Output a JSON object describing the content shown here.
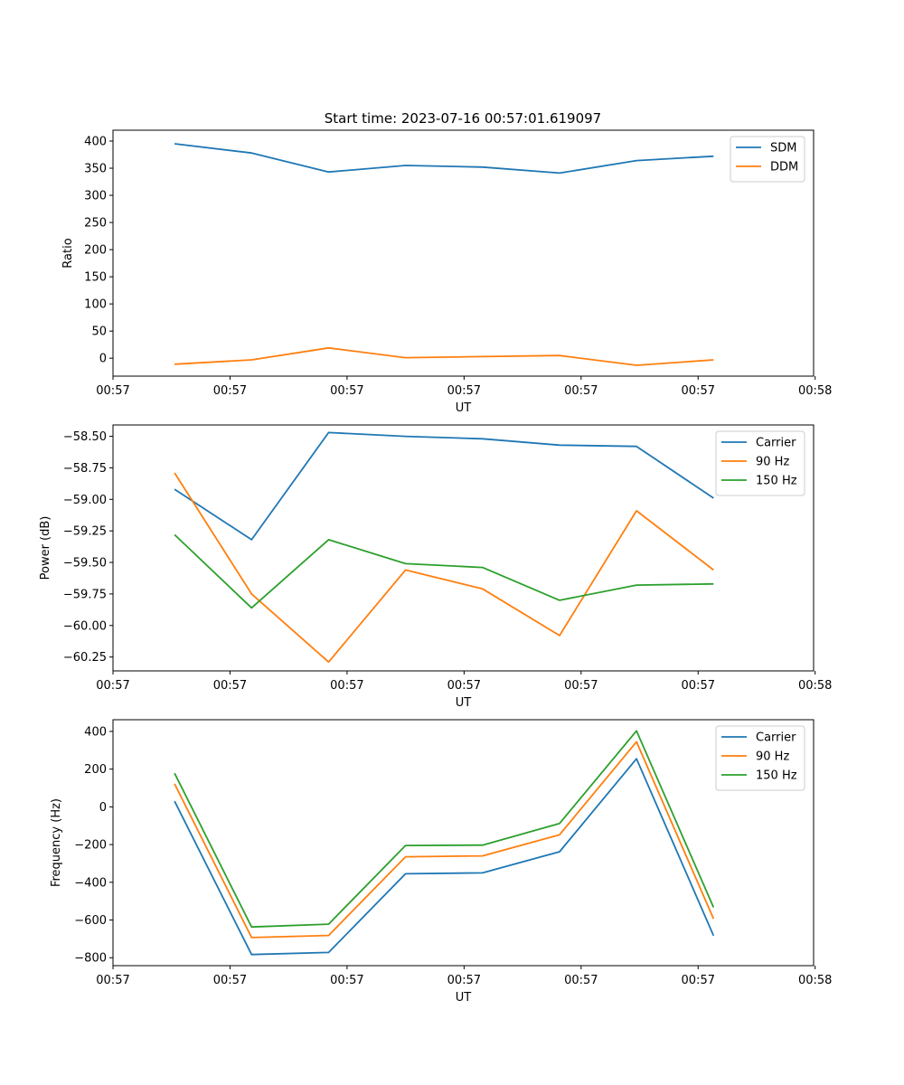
{
  "figure": {
    "title": "Start time: 2023-07-16 00:57:01.619097"
  },
  "chart_data": [
    {
      "type": "line",
      "title": "Start time: 2023-07-16 00:57:01.619097",
      "xlabel": "UT",
      "ylabel": "Ratio",
      "x": [
        1,
        2,
        3,
        4,
        5,
        6,
        7,
        8
      ],
      "xlim": [
        0.2,
        9.3
      ],
      "xticks": [
        0.2,
        1.72,
        3.24,
        4.76,
        6.28,
        7.8,
        9.32
      ],
      "xtick_labels": [
        "00:57",
        "00:57",
        "00:57",
        "00:57",
        "00:57",
        "00:57",
        "00:58"
      ],
      "ylim": [
        -33,
        420
      ],
      "yticks": [
        0,
        50,
        100,
        150,
        200,
        250,
        300,
        350,
        400
      ],
      "ytick_labels": [
        "0",
        "50",
        "100",
        "150",
        "200",
        "250",
        "300",
        "350",
        "400"
      ],
      "legend": "top-right",
      "series": [
        {
          "name": "SDM",
          "color": "#1f77b4",
          "values": [
            395,
            378,
            343,
            355,
            352,
            341,
            364,
            372
          ]
        },
        {
          "name": "DDM",
          "color": "#ff7f0e",
          "values": [
            -11,
            -3,
            19,
            1,
            3,
            5,
            -13,
            -3
          ]
        }
      ]
    },
    {
      "type": "line",
      "title": "",
      "xlabel": "UT",
      "ylabel": "Power (dB)",
      "x": [
        1,
        2,
        3,
        4,
        5,
        6,
        7,
        8
      ],
      "xlim": [
        0.2,
        9.3
      ],
      "xticks": [
        0.2,
        1.72,
        3.24,
        4.76,
        6.28,
        7.8,
        9.32
      ],
      "xtick_labels": [
        "00:57",
        "00:57",
        "00:57",
        "00:57",
        "00:57",
        "00:57",
        "00:58"
      ],
      "ylim": [
        -60.36,
        -58.41
      ],
      "yticks": [
        -60.25,
        -60.0,
        -59.75,
        -59.5,
        -59.25,
        -59.0,
        -58.75,
        -58.5
      ],
      "ytick_labels": [
        "−60.25",
        "−60.00",
        "−59.75",
        "−59.50",
        "−59.25",
        "−59.00",
        "−58.75",
        "−58.50"
      ],
      "legend": "top-right",
      "series": [
        {
          "name": "Carrier",
          "color": "#1f77b4",
          "values": [
            -58.92,
            -59.32,
            -58.47,
            -58.5,
            -58.52,
            -58.57,
            -58.58,
            -58.99
          ]
        },
        {
          "name": "90 Hz",
          "color": "#ff7f0e",
          "values": [
            -58.79,
            -59.75,
            -60.29,
            -59.56,
            -59.71,
            -60.08,
            -59.09,
            -59.56
          ]
        },
        {
          "name": "150 Hz",
          "color": "#2ca02c",
          "values": [
            -59.28,
            -59.86,
            -59.32,
            -59.51,
            -59.54,
            -59.8,
            -59.68,
            -59.67
          ]
        }
      ]
    },
    {
      "type": "line",
      "title": "",
      "xlabel": "UT",
      "ylabel": "Frequency (Hz)",
      "x": [
        1,
        2,
        3,
        4,
        5,
        6,
        7,
        8
      ],
      "xlim": [
        0.2,
        9.3
      ],
      "xticks": [
        0.2,
        1.72,
        3.24,
        4.76,
        6.28,
        7.8,
        9.32
      ],
      "xtick_labels": [
        "00:57",
        "00:57",
        "00:57",
        "00:57",
        "00:57",
        "00:57",
        "00:58"
      ],
      "ylim": [
        -842,
        462
      ],
      "yticks": [
        -800,
        -600,
        -400,
        -200,
        0,
        200,
        400
      ],
      "ytick_labels": [
        "−800",
        "−600",
        "−400",
        "−200",
        "0",
        "200",
        "400"
      ],
      "legend": "top-right",
      "series": [
        {
          "name": "Carrier",
          "color": "#1f77b4",
          "values": [
            30,
            -783,
            -772,
            -355,
            -350,
            -238,
            255,
            -683
          ]
        },
        {
          "name": "90 Hz",
          "color": "#ff7f0e",
          "values": [
            122,
            -693,
            -682,
            -265,
            -260,
            -148,
            345,
            -593
          ]
        },
        {
          "name": "150 Hz",
          "color": "#2ca02c",
          "values": [
            178,
            -637,
            -622,
            -205,
            -203,
            -88,
            403,
            -533
          ]
        }
      ]
    }
  ]
}
